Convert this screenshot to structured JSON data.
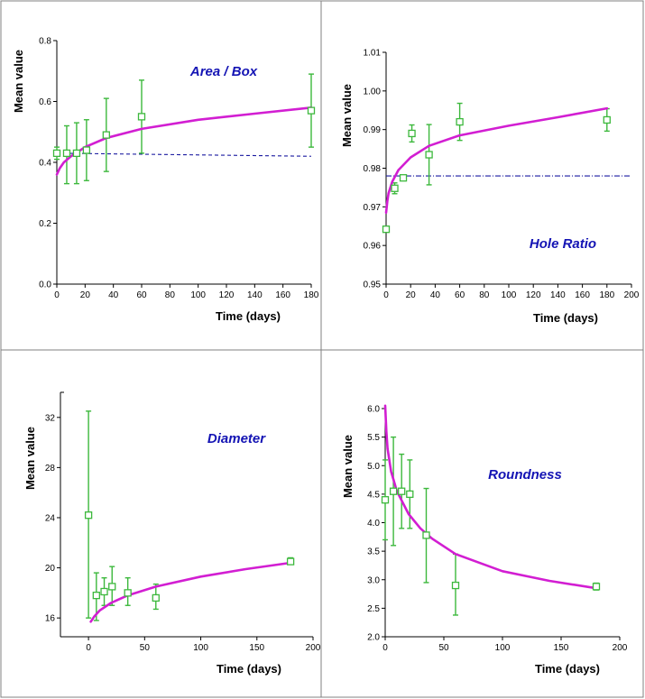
{
  "colors": {
    "data": "#3cb83c",
    "fit": "#d21ed2",
    "ref": "#1a1aa0",
    "title": "#1414b4"
  },
  "chart_data": [
    {
      "type": "scatter",
      "title": "Area / Box",
      "xlabel": "Time (days)",
      "ylabel": "Mean value",
      "xlim": [
        0,
        180
      ],
      "ylim": [
        0.0,
        0.8
      ],
      "xticks": [
        0,
        20,
        40,
        60,
        80,
        100,
        120,
        140,
        160,
        180
      ],
      "xtick_labels": [
        "0",
        "20",
        "40",
        "60",
        "80",
        "100",
        "120",
        "140",
        "160",
        "180"
      ],
      "yticks": [
        0.0,
        0.2,
        0.4,
        0.6,
        0.8
      ],
      "ytick_labels": [
        "0.0",
        "0.2",
        "0.4",
        "0.6",
        "0.8"
      ],
      "x": [
        0,
        7,
        14,
        21,
        35,
        60,
        180
      ],
      "y": [
        0.43,
        0.43,
        0.43,
        0.44,
        0.49,
        0.55,
        0.57
      ],
      "err_low": [
        0.41,
        0.33,
        0.33,
        0.34,
        0.37,
        0.43,
        0.45
      ],
      "err_high": [
        0.45,
        0.52,
        0.53,
        0.54,
        0.61,
        0.67,
        0.69
      ],
      "fit_curve": {
        "x": [
          0,
          1,
          2,
          5,
          10,
          20,
          35,
          60,
          100,
          140,
          180
        ],
        "y": [
          0.36,
          0.37,
          0.38,
          0.4,
          0.42,
          0.45,
          0.48,
          0.51,
          0.54,
          0.56,
          0.58
        ]
      },
      "reference_line": {
        "x": [
          0,
          180
        ],
        "y": [
          0.43,
          0.42
        ]
      },
      "grid": false
    },
    {
      "type": "scatter",
      "title": "Hole Ratio",
      "xlabel": "Time (days)",
      "ylabel": "Mean value",
      "xlim": [
        0,
        200
      ],
      "ylim": [
        0.95,
        1.01
      ],
      "xticks": [
        0,
        20,
        40,
        60,
        80,
        100,
        120,
        140,
        160,
        180,
        200
      ],
      "xtick_labels": [
        "0",
        "20",
        "40",
        "60",
        "80",
        "100",
        "120",
        "140",
        "160",
        "180",
        "200"
      ],
      "yticks": [
        0.95,
        0.96,
        0.97,
        0.98,
        0.99,
        1.0,
        1.01
      ],
      "ytick_labels": [
        "0.95",
        "0.96",
        "0.97",
        "0.98",
        "0.99",
        "1.00",
        "1.01"
      ],
      "x": [
        0,
        7,
        14,
        21,
        35,
        60,
        180
      ],
      "y": [
        0.9642,
        0.9748,
        0.9775,
        0.989,
        0.9835,
        0.992,
        0.9925
      ],
      "err_low": [
        0.9642,
        0.9734,
        0.9769,
        0.9868,
        0.9757,
        0.9872,
        0.9896
      ],
      "err_high": [
        0.9642,
        0.9762,
        0.9781,
        0.9912,
        0.9913,
        0.9968,
        0.9954
      ],
      "fit_curve": {
        "x": [
          0,
          1,
          2,
          5,
          10,
          20,
          35,
          60,
          100,
          140,
          180
        ],
        "y": [
          0.9685,
          0.9715,
          0.9735,
          0.9765,
          0.9795,
          0.9828,
          0.9858,
          0.9885,
          0.991,
          0.9932,
          0.9955
        ]
      },
      "reference_line": {
        "x": [
          0,
          200
        ],
        "y": [
          0.978,
          0.978
        ]
      },
      "grid": false
    },
    {
      "type": "scatter",
      "title": "Diameter",
      "xlabel": "Time (days)",
      "ylabel": "Mean value",
      "xlim": [
        -25,
        200
      ],
      "ylim": [
        14.5,
        34
      ],
      "xticks": [
        0,
        50,
        100,
        150,
        200
      ],
      "xtick_labels": [
        "0",
        "50",
        "100",
        "150",
        "200"
      ],
      "yticks": [
        16,
        20,
        24,
        28,
        32
      ],
      "ytick_labels": [
        "16",
        "20",
        "24",
        "28",
        "32"
      ],
      "x": [
        0,
        7,
        14,
        21,
        35,
        60,
        180
      ],
      "y": [
        24.2,
        17.8,
        18.1,
        18.5,
        18.0,
        17.6,
        20.5
      ],
      "err_low": [
        16.0,
        15.8,
        17.0,
        17.0,
        17.0,
        16.7,
        20.3
      ],
      "err_high": [
        32.5,
        19.6,
        19.2,
        20.1,
        19.2,
        18.7,
        20.8
      ],
      "fit_curve": {
        "x": [
          2,
          5,
          10,
          20,
          35,
          60,
          100,
          140,
          180
        ],
        "y": [
          15.7,
          16.1,
          16.6,
          17.2,
          17.8,
          18.5,
          19.3,
          19.9,
          20.4
        ]
      },
      "grid": false
    },
    {
      "type": "scatter",
      "title": "Roundness",
      "xlabel": "Time (days)",
      "ylabel": "Mean value",
      "xlim": [
        0,
        200
      ],
      "ylim": [
        2.0,
        6.0
      ],
      "xticks": [
        0,
        50,
        100,
        150,
        200
      ],
      "xtick_labels": [
        "0",
        "50",
        "100",
        "150",
        "200"
      ],
      "yticks": [
        2.0,
        2.5,
        3.0,
        3.5,
        4.0,
        4.5,
        5.0,
        5.5,
        6.0
      ],
      "ytick_labels": [
        "2.0",
        "2.5",
        "3.0",
        "3.5",
        "4.0",
        "4.5",
        "5.0",
        "5.5",
        "6.0"
      ],
      "x": [
        0,
        7,
        14,
        21,
        35,
        60,
        180
      ],
      "y": [
        4.4,
        4.55,
        4.55,
        4.5,
        3.78,
        2.9,
        2.88
      ],
      "err_low": [
        3.7,
        3.6,
        3.9,
        3.9,
        2.95,
        2.38,
        2.82
      ],
      "err_high": [
        5.1,
        5.5,
        5.2,
        5.1,
        4.6,
        3.45,
        2.94
      ],
      "fit_curve": {
        "x": [
          0,
          1,
          2,
          5,
          10,
          15,
          20,
          30,
          40,
          60,
          80,
          100,
          140,
          180
        ],
        "y": [
          6.05,
          5.6,
          5.3,
          4.9,
          4.55,
          4.35,
          4.15,
          3.9,
          3.72,
          3.45,
          3.3,
          3.15,
          2.98,
          2.85
        ]
      },
      "grid": false
    }
  ]
}
